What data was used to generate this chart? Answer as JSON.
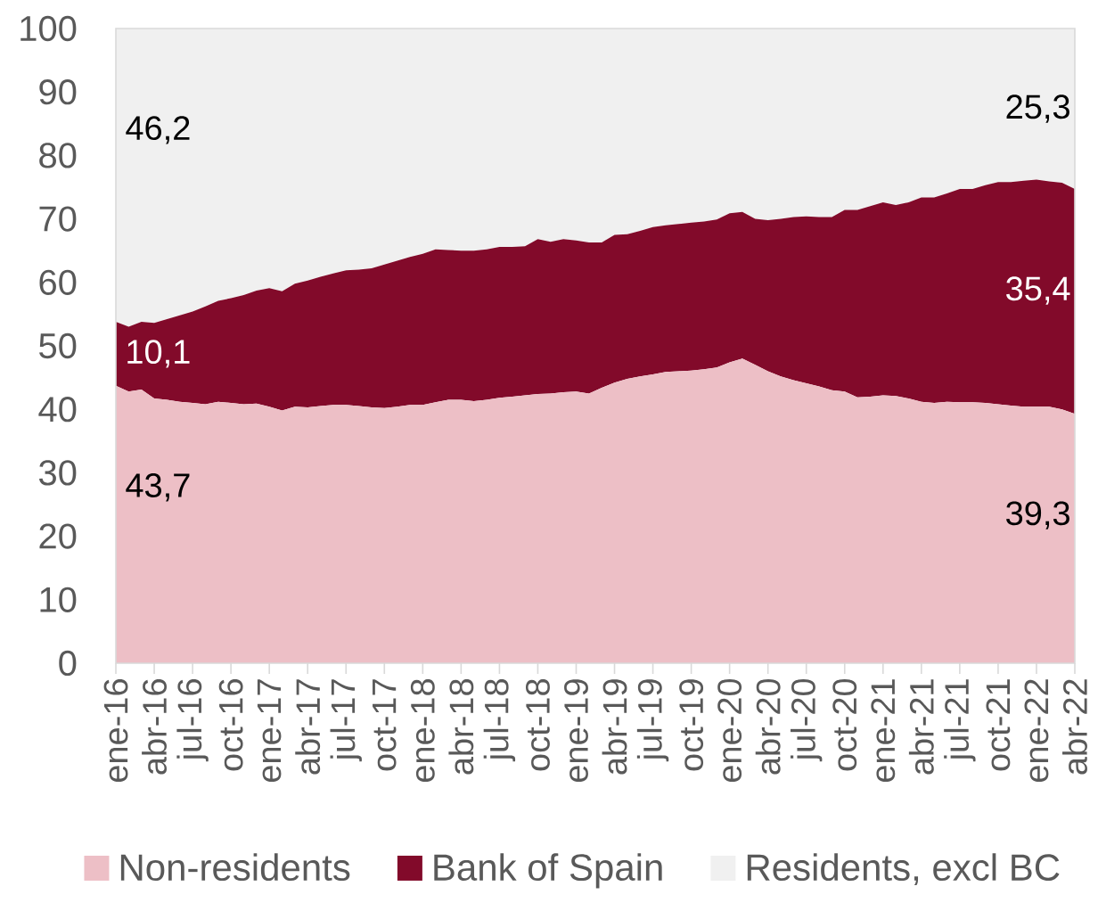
{
  "chart_data": {
    "type": "area",
    "stacked": true,
    "legend": "bottom",
    "categories": [
      "ene-16",
      null,
      null,
      "abr-16",
      null,
      null,
      "jul-16",
      null,
      null,
      "oct-16",
      null,
      null,
      "ene-17",
      null,
      null,
      "abr-17",
      null,
      null,
      "jul-17",
      null,
      null,
      "oct-17",
      null,
      null,
      "ene-18",
      null,
      null,
      "abr-18",
      null,
      null,
      "jul-18",
      null,
      null,
      "oct-18",
      null,
      null,
      "ene-19",
      null,
      null,
      "abr-19",
      null,
      null,
      "jul-19",
      null,
      null,
      "oct-19",
      null,
      null,
      "ene-20",
      null,
      null,
      "abr-20",
      null,
      null,
      "jul-20",
      null,
      null,
      "oct-20",
      null,
      null,
      "ene-21",
      null,
      null,
      "abr-21",
      null,
      null,
      "jul-21",
      null,
      null,
      "oct-21",
      null,
      null,
      "ene-22",
      null,
      null,
      "abr-22"
    ],
    "series": [
      {
        "name": "Non-residents",
        "color": "#EDBFC6",
        "values": [
          43.7,
          42.8,
          43.1,
          41.7,
          41.5,
          41.2,
          41.0,
          40.8,
          41.2,
          41.0,
          40.8,
          40.9,
          40.4,
          39.8,
          40.4,
          40.3,
          40.5,
          40.7,
          40.7,
          40.5,
          40.3,
          40.2,
          40.4,
          40.7,
          40.7,
          41.1,
          41.5,
          41.5,
          41.3,
          41.5,
          41.8,
          42.0,
          42.2,
          42.4,
          42.5,
          42.7,
          42.8,
          42.5,
          43.4,
          44.2,
          44.8,
          45.2,
          45.5,
          45.9,
          46.0,
          46.1,
          46.3,
          46.6,
          47.4,
          48.0,
          47.0,
          46.0,
          45.2,
          44.6,
          44.1,
          43.6,
          43.0,
          42.8,
          41.9,
          42.0,
          42.2,
          42.1,
          41.7,
          41.2,
          41.0,
          41.2,
          41.1,
          41.1,
          41.0,
          40.8,
          40.6,
          40.4,
          40.4,
          40.4,
          40.0,
          39.3
        ],
        "value_labels": [
          "43,7",
          null,
          null,
          null,
          null,
          null,
          null,
          null,
          null,
          null,
          null,
          null,
          null,
          null,
          null,
          null,
          null,
          null,
          null,
          null,
          null,
          null,
          null,
          null,
          null,
          null,
          null,
          null,
          null,
          null,
          null,
          null,
          null,
          null,
          null,
          null,
          null,
          null,
          null,
          null,
          null,
          null,
          null,
          null,
          null,
          null,
          null,
          null,
          null,
          null,
          null,
          null,
          null,
          null,
          null,
          null,
          null,
          null,
          null,
          null,
          null,
          null,
          null,
          null,
          null,
          null,
          null,
          null,
          null,
          null,
          null,
          null,
          null,
          null,
          null,
          "39,3"
        ]
      },
      {
        "name": "Bank of Spain",
        "color": "#820A2A",
        "values": [
          10.1,
          10.2,
          10.7,
          11.9,
          12.7,
          13.6,
          14.4,
          15.4,
          15.9,
          16.5,
          17.2,
          17.8,
          18.7,
          18.8,
          19.4,
          20.0,
          20.4,
          20.7,
          21.2,
          21.5,
          21.9,
          22.6,
          23.0,
          23.3,
          23.8,
          24.1,
          23.6,
          23.5,
          23.7,
          23.7,
          23.8,
          23.6,
          23.5,
          24.4,
          23.9,
          24.1,
          23.8,
          23.8,
          22.9,
          23.3,
          22.8,
          22.9,
          23.2,
          23.1,
          23.2,
          23.3,
          23.3,
          23.3,
          23.5,
          23.1,
          23.0,
          23.8,
          24.8,
          25.7,
          26.3,
          26.7,
          27.3,
          28.6,
          29.5,
          30.0,
          30.4,
          30.1,
          30.9,
          32.2,
          32.4,
          32.8,
          33.6,
          33.6,
          34.3,
          35.0,
          35.2,
          35.6,
          35.8,
          35.5,
          35.7,
          35.4
        ],
        "value_labels": [
          "10,1",
          null,
          null,
          null,
          null,
          null,
          null,
          null,
          null,
          null,
          null,
          null,
          null,
          null,
          null,
          null,
          null,
          null,
          null,
          null,
          null,
          null,
          null,
          null,
          null,
          null,
          null,
          null,
          null,
          null,
          null,
          null,
          null,
          null,
          null,
          null,
          null,
          null,
          null,
          null,
          null,
          null,
          null,
          null,
          null,
          null,
          null,
          null,
          null,
          null,
          null,
          null,
          null,
          null,
          null,
          null,
          null,
          null,
          null,
          null,
          null,
          null,
          null,
          null,
          null,
          null,
          null,
          null,
          null,
          null,
          null,
          null,
          null,
          null,
          null,
          "35,4"
        ]
      },
      {
        "name": "Residents, excl BC",
        "color": "#F0F0F0",
        "values": [
          46.2,
          47.0,
          46.2,
          46.4,
          45.8,
          45.2,
          44.6,
          43.8,
          42.9,
          42.5,
          42.0,
          41.3,
          40.9,
          41.4,
          40.2,
          39.7,
          39.1,
          38.6,
          38.1,
          38.0,
          37.8,
          37.2,
          36.6,
          36.0,
          35.5,
          34.8,
          34.9,
          35.0,
          35.0,
          34.8,
          34.4,
          34.4,
          34.3,
          33.2,
          33.6,
          33.2,
          33.4,
          33.7,
          33.7,
          32.5,
          32.4,
          31.9,
          31.3,
          31.0,
          30.8,
          30.6,
          30.4,
          30.1,
          29.1,
          28.9,
          30.0,
          30.2,
          30.0,
          29.7,
          29.6,
          29.7,
          29.7,
          28.6,
          28.6,
          28.0,
          27.4,
          27.8,
          27.4,
          26.6,
          26.6,
          26.0,
          25.3,
          25.3,
          24.7,
          24.2,
          24.2,
          24.0,
          23.8,
          24.1,
          24.3,
          25.3
        ],
        "value_labels": [
          "46,2",
          null,
          null,
          null,
          null,
          null,
          null,
          null,
          null,
          null,
          null,
          null,
          null,
          null,
          null,
          null,
          null,
          null,
          null,
          null,
          null,
          null,
          null,
          null,
          null,
          null,
          null,
          null,
          null,
          null,
          null,
          null,
          null,
          null,
          null,
          null,
          null,
          null,
          null,
          null,
          null,
          null,
          null,
          null,
          null,
          null,
          null,
          null,
          null,
          null,
          null,
          null,
          null,
          null,
          null,
          null,
          null,
          null,
          null,
          null,
          null,
          null,
          null,
          null,
          null,
          null,
          null,
          null,
          null,
          null,
          null,
          null,
          null,
          null,
          null,
          "25,3"
        ]
      }
    ],
    "ylim": [
      0,
      100
    ],
    "yticks": [
      0,
      10,
      20,
      30,
      40,
      50,
      60,
      70,
      80,
      90,
      100
    ]
  }
}
